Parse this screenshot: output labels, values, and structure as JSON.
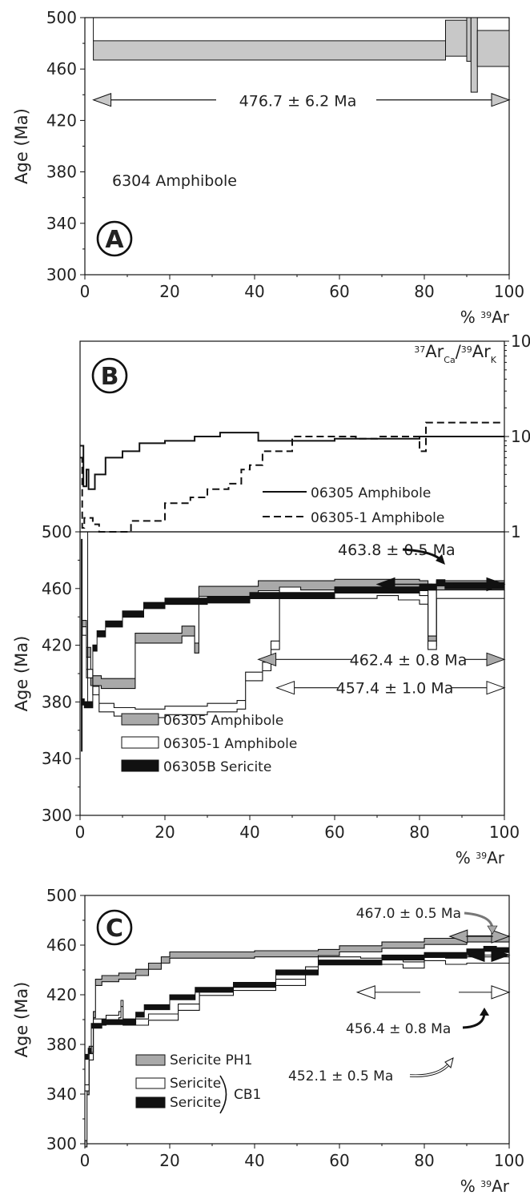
{
  "figure": {
    "xlabel": "% ³⁹Ar"
  },
  "chart_data": [
    {
      "panel": "A",
      "type": "line",
      "label": "6304 Amphibole",
      "xlabel": "% ³⁹Ar",
      "ylabel": "Age (Ma)",
      "xlim": [
        0,
        100
      ],
      "ylim": [
        300,
        500
      ],
      "xticks": [
        0,
        20,
        40,
        60,
        80,
        100
      ],
      "yticks": [
        300,
        340,
        380,
        420,
        460,
        500
      ],
      "plateau": {
        "text": "476.7 ± 6.2 Ma",
        "from": 2,
        "to": 100,
        "age": 436
      },
      "steps": [
        {
          "x0": 2,
          "x1": 85,
          "lo": 467,
          "hi": 482
        },
        {
          "x0": 85,
          "x1": 90,
          "lo": 470,
          "hi": 498
        },
        {
          "x0": 90,
          "x1": 91,
          "lo": 466,
          "hi": 500
        },
        {
          "x0": 91,
          "x1": 92.5,
          "lo": 442,
          "hi": 500
        },
        {
          "x0": 92.5,
          "x1": 100,
          "lo": 462,
          "hi": 490
        }
      ]
    },
    {
      "panel": "B",
      "type": "line",
      "xlabel": "% ³⁹Ar",
      "ylabel": "Age (Ma)",
      "xlim": [
        0,
        100
      ],
      "ylim": [
        300,
        500
      ],
      "xticks": [
        0,
        20,
        40,
        60,
        80,
        100
      ],
      "yticks": [
        300,
        340,
        380,
        420,
        460,
        500
      ],
      "ratio_axis": {
        "label": "³⁷Ar_Ca/³⁹Ar_K",
        "ticks": [
          1,
          10,
          100
        ],
        "scale": "log"
      },
      "ratio_series": [
        {
          "name": "06305 Amphibole",
          "style": "solid",
          "steps": [
            [
              0,
              8
            ],
            [
              0.8,
              3
            ],
            [
              1.5,
              4.5
            ],
            [
              2,
              2.8
            ],
            [
              3.5,
              4
            ],
            [
              6,
              6
            ],
            [
              10,
              7
            ],
            [
              14,
              8.5
            ],
            [
              20,
              9
            ],
            [
              27,
              10
            ],
            [
              33,
              11
            ],
            [
              42,
              9
            ],
            [
              60,
              9.5
            ],
            [
              80,
              10
            ],
            [
              100,
              10
            ]
          ]
        },
        {
          "name": "06305-1 Amphibole",
          "style": "dashed",
          "steps": [
            [
              0,
              6
            ],
            [
              0.5,
              1.1
            ],
            [
              1,
              1.4
            ],
            [
              3,
              1.2
            ],
            [
              4.5,
              1
            ],
            [
              8,
              1
            ],
            [
              12,
              1.3
            ],
            [
              20,
              2
            ],
            [
              26,
              2.3
            ],
            [
              30,
              2.8
            ],
            [
              35,
              3.2
            ],
            [
              38,
              4.5
            ],
            [
              40,
              5
            ],
            [
              43,
              7
            ],
            [
              50,
              10
            ],
            [
              65,
              9.5
            ],
            [
              70,
              10
            ],
            [
              80,
              7
            ],
            [
              81.5,
              14
            ],
            [
              100,
              14
            ]
          ]
        }
      ],
      "plateaus": [
        {
          "text": "463.8 ± 0.5 Ma",
          "age": 463,
          "from": 70,
          "to": 100,
          "style": "black"
        },
        {
          "text": "462.4 ± 0.8 Ma",
          "age": 410,
          "from": 42,
          "to": 100,
          "style": "grey"
        },
        {
          "text": "457.4 ± 1.0 Ma",
          "age": 390,
          "from": 52,
          "to": 100,
          "style": "open"
        }
      ],
      "series": [
        {
          "name": "06305 Amphibole",
          "style": "grey",
          "steps": [
            [
              0.5,
              434
            ],
            [
              1.5,
              415
            ],
            [
              2.5,
              395
            ],
            [
              5,
              393
            ],
            [
              13,
              425
            ],
            [
              24,
              430
            ],
            [
              27,
              418
            ],
            [
              28,
              458
            ],
            [
              42,
              462
            ],
            [
              60,
              463
            ],
            [
              80,
              462
            ],
            [
              82,
              423
            ],
            [
              84,
              462
            ],
            [
              100,
              462
            ]
          ]
        },
        {
          "name": "06305-1 Amphibole",
          "style": "open",
          "steps": [
            [
              0.5,
              430
            ],
            [
              1.5,
              400
            ],
            [
              3,
              388
            ],
            [
              4.5,
              376
            ],
            [
              8,
              373
            ],
            [
              13,
              372
            ],
            [
              20,
              374
            ],
            [
              30,
              376
            ],
            [
              37,
              378
            ],
            [
              39,
              398
            ],
            [
              43,
              405
            ],
            [
              45,
              420
            ],
            [
              47,
              458
            ],
            [
              52,
              456
            ],
            [
              70,
              458
            ],
            [
              75,
              455
            ],
            [
              80,
              452
            ],
            [
              82,
              420
            ],
            [
              84,
              456
            ],
            [
              100,
              456
            ]
          ]
        },
        {
          "name": "06305B Sericite",
          "style": "black",
          "steps": [
            [
              0.3,
              380
            ],
            [
              1,
              378
            ],
            [
              2,
              378
            ],
            [
              3,
              418
            ],
            [
              4,
              428
            ],
            [
              6,
              435
            ],
            [
              10,
              442
            ],
            [
              15,
              448
            ],
            [
              20,
              451
            ],
            [
              30,
              452
            ],
            [
              40,
              455
            ],
            [
              60,
              459
            ],
            [
              80,
              461
            ],
            [
              84,
              464
            ],
            [
              86,
              462
            ],
            [
              100,
              463
            ]
          ]
        }
      ]
    },
    {
      "panel": "C",
      "type": "line",
      "xlabel": "% ³⁹Ar",
      "ylabel": "Age (Ma)",
      "xlim": [
        0,
        100
      ],
      "ylim": [
        300,
        500
      ],
      "xticks": [
        0,
        20,
        40,
        60,
        80,
        100
      ],
      "yticks": [
        300,
        340,
        380,
        420,
        460,
        500
      ],
      "plateaus": [
        {
          "text": "467.0 ± 0.5 Ma",
          "age": 467,
          "from": 86,
          "to": 100,
          "style": "grey"
        },
        {
          "text": "456.4 ± 0.8 Ma",
          "age": 452,
          "from": 90,
          "to": 100,
          "style": "black"
        },
        {
          "text": "452.1 ± 0.5 Ma",
          "age": 422,
          "from": 71,
          "to": 100,
          "style": "open"
        }
      ],
      "series": [
        {
          "name": "Sericite PH1",
          "style": "grey",
          "steps": [
            [
              0,
              300
            ],
            [
              0.5,
              342
            ],
            [
              1,
              376
            ],
            [
              2,
              404
            ],
            [
              2.5,
              430
            ],
            [
              4,
              433
            ],
            [
              8,
              435
            ],
            [
              12,
              438
            ],
            [
              15,
              443
            ],
            [
              18,
              448
            ],
            [
              20,
              452
            ],
            [
              40,
              453
            ],
            [
              55,
              454
            ],
            [
              60,
              457
            ],
            [
              70,
              460
            ],
            [
              80,
              463
            ],
            [
              90,
              465
            ],
            [
              100,
              467
            ]
          ]
        },
        {
          "name": "Sericite CB1",
          "style": "open",
          "steps": [
            [
              0,
              345
            ],
            [
              1,
              370
            ],
            [
              2,
              398
            ],
            [
              5,
              401
            ],
            [
              8,
              404
            ],
            [
              8.5,
              413
            ],
            [
              9,
              398
            ],
            [
              15,
              402
            ],
            [
              22,
              410
            ],
            [
              27,
              422
            ],
            [
              35,
              426
            ],
            [
              45,
              430
            ],
            [
              52,
              440
            ],
            [
              55,
              448
            ],
            [
              65,
              447
            ],
            [
              75,
              444
            ],
            [
              80,
              450
            ],
            [
              85,
              447
            ],
            [
              90,
              448
            ],
            [
              100,
              450
            ]
          ]
        },
        {
          "name": "Sericite CB1",
          "style": "black",
          "steps": [
            [
              0,
              370
            ],
            [
              0.8,
              375
            ],
            [
              1.5,
              395
            ],
            [
              4,
              398
            ],
            [
              12,
              404
            ],
            [
              14,
              410
            ],
            [
              20,
              418
            ],
            [
              26,
              424
            ],
            [
              35,
              428
            ],
            [
              45,
              438
            ],
            [
              55,
              446
            ],
            [
              70,
              450
            ],
            [
              80,
              452
            ],
            [
              90,
              455
            ],
            [
              94,
              457
            ],
            [
              97,
              456
            ],
            [
              100,
              455
            ]
          ]
        }
      ],
      "legend_bracket": "CB1"
    }
  ]
}
